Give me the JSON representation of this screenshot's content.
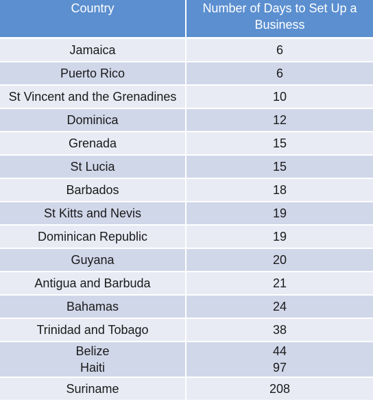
{
  "table": {
    "headers": {
      "country": "Country",
      "days": "Number of Days to Set Up a Business"
    },
    "rows": [
      {
        "country": "Jamaica",
        "days": "6"
      },
      {
        "country": "Puerto Rico",
        "days": "6"
      },
      {
        "country": "St Vincent and the Grenadines",
        "days": "10"
      },
      {
        "country": "Dominica",
        "days": "12"
      },
      {
        "country": "Grenada",
        "days": "15"
      },
      {
        "country": "St Lucia",
        "days": "15"
      },
      {
        "country": "Barbados",
        "days": "18"
      },
      {
        "country": "St Kitts and Nevis",
        "days": "19"
      },
      {
        "country": "Dominican Republic",
        "days": "19"
      },
      {
        "country": "Guyana",
        "days": "20"
      },
      {
        "country": "Antigua and Barbuda",
        "days": "21"
      },
      {
        "country": "Bahamas",
        "days": "24"
      },
      {
        "country": "Trinidad and Tobago",
        "days": "38"
      },
      {
        "country_lines": [
          "Belize",
          "Haiti"
        ],
        "days_lines": [
          "44",
          "97"
        ]
      },
      {
        "country": "Suriname",
        "days": "208"
      }
    ]
  }
}
